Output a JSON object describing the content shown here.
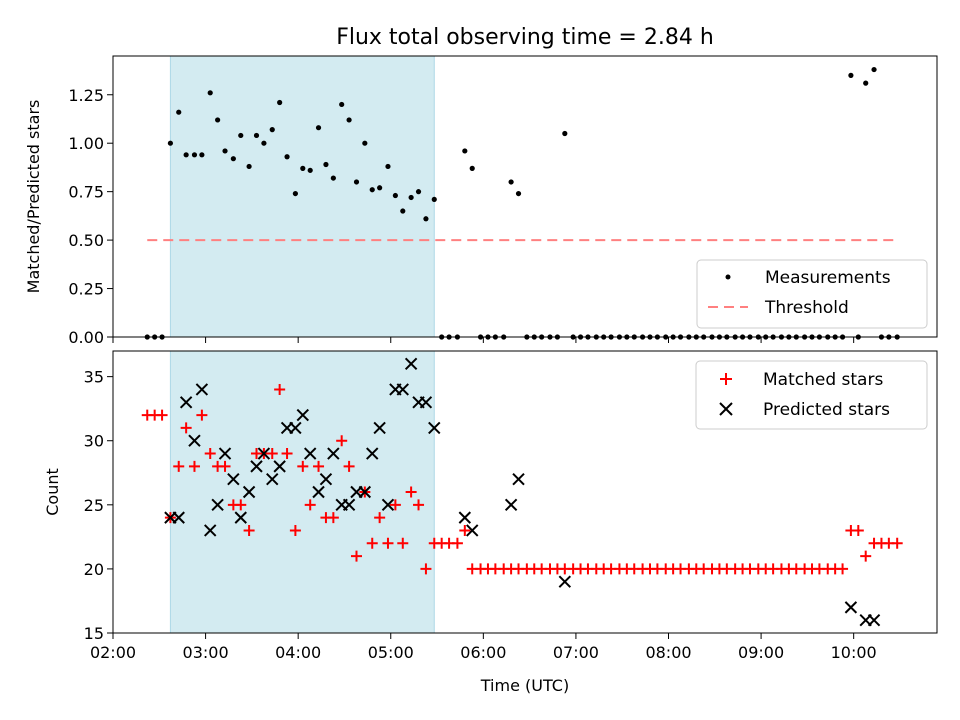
{
  "chart_data": [
    {
      "type": "scatter",
      "title": "Flux total observing time = 2.84 h",
      "ylabel": "Matched/Predicted stars",
      "xlabel": "",
      "x_unit": "hours (UTC)",
      "xlim": [
        2.0,
        10.9
      ],
      "ylim": [
        0,
        1.45
      ],
      "yticks": [
        0.0,
        0.25,
        0.5,
        0.75,
        1.0,
        1.25
      ],
      "ytick_labels": [
        "0.00",
        "0.25",
        "0.50",
        "0.75",
        "1.00",
        "1.25"
      ],
      "shaded_span": [
        2.62,
        5.47
      ],
      "shade_color": "#d3ebf1",
      "legend_position": "lower-right",
      "series": [
        {
          "name": "Measurements",
          "marker": "dot",
          "color": "#000000",
          "x": [
            2.37,
            2.45,
            2.53,
            2.62,
            2.71,
            2.79,
            2.88,
            2.96,
            3.05,
            3.13,
            3.21,
            3.3,
            3.38,
            3.47,
            3.55,
            3.63,
            3.72,
            3.8,
            3.88,
            3.97,
            4.05,
            4.13,
            4.22,
            4.3,
            4.38,
            4.47,
            4.55,
            4.63,
            4.72,
            4.8,
            4.88,
            4.97,
            5.05,
            5.13,
            5.22,
            5.3,
            5.38,
            5.47,
            5.55,
            5.63,
            5.72,
            5.8,
            5.88,
            5.97,
            6.05,
            6.13,
            6.22,
            6.3,
            6.38,
            6.47,
            6.55,
            6.63,
            6.72,
            6.8,
            6.88,
            6.97,
            7.05,
            7.13,
            7.22,
            7.3,
            7.38,
            7.47,
            7.55,
            7.63,
            7.72,
            7.8,
            7.88,
            7.97,
            8.05,
            8.13,
            8.22,
            8.3,
            8.38,
            8.47,
            8.55,
            8.63,
            8.72,
            8.8,
            8.88,
            8.97,
            9.05,
            9.13,
            9.22,
            9.3,
            9.38,
            9.47,
            9.55,
            9.63,
            9.72,
            9.8,
            9.88,
            9.97,
            10.05,
            10.13,
            10.22,
            10.3,
            10.38,
            10.47
          ],
          "y": [
            0,
            0,
            0,
            1.0,
            1.16,
            0.94,
            0.94,
            0.94,
            1.26,
            1.12,
            0.96,
            0.92,
            1.04,
            0.88,
            1.04,
            1.0,
            1.07,
            1.21,
            0.93,
            0.74,
            0.87,
            0.86,
            1.08,
            0.89,
            0.82,
            1.2,
            1.12,
            0.8,
            1.0,
            0.76,
            0.77,
            0.88,
            0.73,
            0.65,
            0.72,
            0.75,
            0.61,
            0.71,
            0,
            0,
            0,
            0.96,
            0.87,
            0,
            0,
            0,
            0,
            0.8,
            0.74,
            0,
            0,
            0,
            0,
            0,
            1.05,
            0,
            0,
            0,
            0,
            0,
            0,
            0,
            0,
            0,
            0,
            0,
            0,
            0,
            0,
            0,
            0,
            0,
            0,
            0,
            0,
            0,
            0,
            0,
            0,
            0,
            0,
            0,
            0,
            0,
            0,
            0,
            0,
            0,
            0,
            0,
            0,
            1.35,
            0,
            1.31,
            1.38,
            0,
            0,
            0
          ]
        },
        {
          "name": "Threshold",
          "marker": "dashed-line",
          "color": "#ff8080",
          "x": [
            2.37,
            10.47
          ],
          "y": [
            0.5,
            0.5
          ]
        }
      ]
    },
    {
      "type": "scatter",
      "title": "",
      "ylabel": "Count",
      "xlabel": "Time (UTC)",
      "x_unit": "hours (UTC)",
      "xlim": [
        2.0,
        10.9
      ],
      "ylim": [
        15,
        37
      ],
      "yticks": [
        15,
        20,
        25,
        30,
        35
      ],
      "ytick_labels": [
        "15",
        "20",
        "25",
        "30",
        "35"
      ],
      "xticks": [
        2,
        3,
        4,
        5,
        6,
        7,
        8,
        9,
        10
      ],
      "xtick_labels": [
        "02:00",
        "03:00",
        "04:00",
        "05:00",
        "06:00",
        "07:00",
        "08:00",
        "09:00",
        "10:00"
      ],
      "shaded_span": [
        2.62,
        5.47
      ],
      "shade_color": "#d3ebf1",
      "legend_position": "upper-right",
      "series": [
        {
          "name": "Matched stars",
          "marker": "plus",
          "color": "#ff0000",
          "x": [
            2.37,
            2.45,
            2.53,
            2.62,
            2.71,
            2.79,
            2.88,
            2.96,
            3.05,
            3.13,
            3.21,
            3.3,
            3.38,
            3.47,
            3.55,
            3.63,
            3.72,
            3.8,
            3.88,
            3.97,
            4.05,
            4.13,
            4.22,
            4.3,
            4.38,
            4.47,
            4.55,
            4.63,
            4.72,
            4.8,
            4.88,
            4.97,
            5.05,
            5.13,
            5.22,
            5.3,
            5.38,
            5.47,
            5.55,
            5.63,
            5.72,
            5.8,
            5.88,
            5.97,
            6.05,
            6.13,
            6.22,
            6.3,
            6.38,
            6.47,
            6.55,
            6.63,
            6.72,
            6.8,
            6.88,
            6.97,
            7.05,
            7.13,
            7.22,
            7.3,
            7.38,
            7.47,
            7.55,
            7.63,
            7.72,
            7.8,
            7.88,
            7.97,
            8.05,
            8.13,
            8.22,
            8.3,
            8.38,
            8.47,
            8.55,
            8.63,
            8.72,
            8.8,
            8.88,
            8.97,
            9.05,
            9.13,
            9.22,
            9.3,
            9.38,
            9.47,
            9.55,
            9.63,
            9.72,
            9.8,
            9.88,
            9.97,
            10.05,
            10.13,
            10.22,
            10.3,
            10.38,
            10.47
          ],
          "y": [
            32,
            32,
            32,
            24,
            28,
            31,
            28,
            32,
            29,
            28,
            28,
            25,
            25,
            23,
            29,
            29,
            29,
            34,
            29,
            23,
            28,
            25,
            28,
            24,
            24,
            30,
            28,
            21,
            26,
            22,
            24,
            22,
            25,
            22,
            26,
            25,
            20,
            22,
            22,
            22,
            22,
            23,
            20,
            20,
            20,
            20,
            20,
            20,
            20,
            20,
            20,
            20,
            20,
            20,
            20,
            20,
            20,
            20,
            20,
            20,
            20,
            20,
            20,
            20,
            20,
            20,
            20,
            20,
            20,
            20,
            20,
            20,
            20,
            20,
            20,
            20,
            20,
            20,
            20,
            20,
            20,
            20,
            20,
            20,
            20,
            20,
            20,
            20,
            20,
            20,
            20,
            23,
            23,
            21,
            22,
            22,
            22,
            22
          ]
        },
        {
          "name": "Predicted stars",
          "marker": "x",
          "color": "#000000",
          "x": [
            2.62,
            2.71,
            2.79,
            2.88,
            2.96,
            3.05,
            3.13,
            3.21,
            3.3,
            3.38,
            3.47,
            3.55,
            3.63,
            3.72,
            3.8,
            3.88,
            3.97,
            4.05,
            4.13,
            4.22,
            4.3,
            4.38,
            4.47,
            4.55,
            4.63,
            4.72,
            4.8,
            4.88,
            4.97,
            5.05,
            5.13,
            5.22,
            5.3,
            5.38,
            5.47,
            5.8,
            5.88,
            6.3,
            6.38,
            6.88,
            9.97,
            10.13,
            10.22
          ],
          "y": [
            24,
            24,
            33,
            30,
            34,
            23,
            25,
            29,
            27,
            24,
            26,
            28,
            29,
            27,
            28,
            31,
            31,
            32,
            29,
            26,
            27,
            29,
            25,
            25,
            26,
            26,
            29,
            31,
            25,
            34,
            34,
            36,
            33,
            33,
            31,
            24,
            23,
            25,
            27,
            19,
            17,
            16,
            16
          ]
        }
      ]
    }
  ]
}
